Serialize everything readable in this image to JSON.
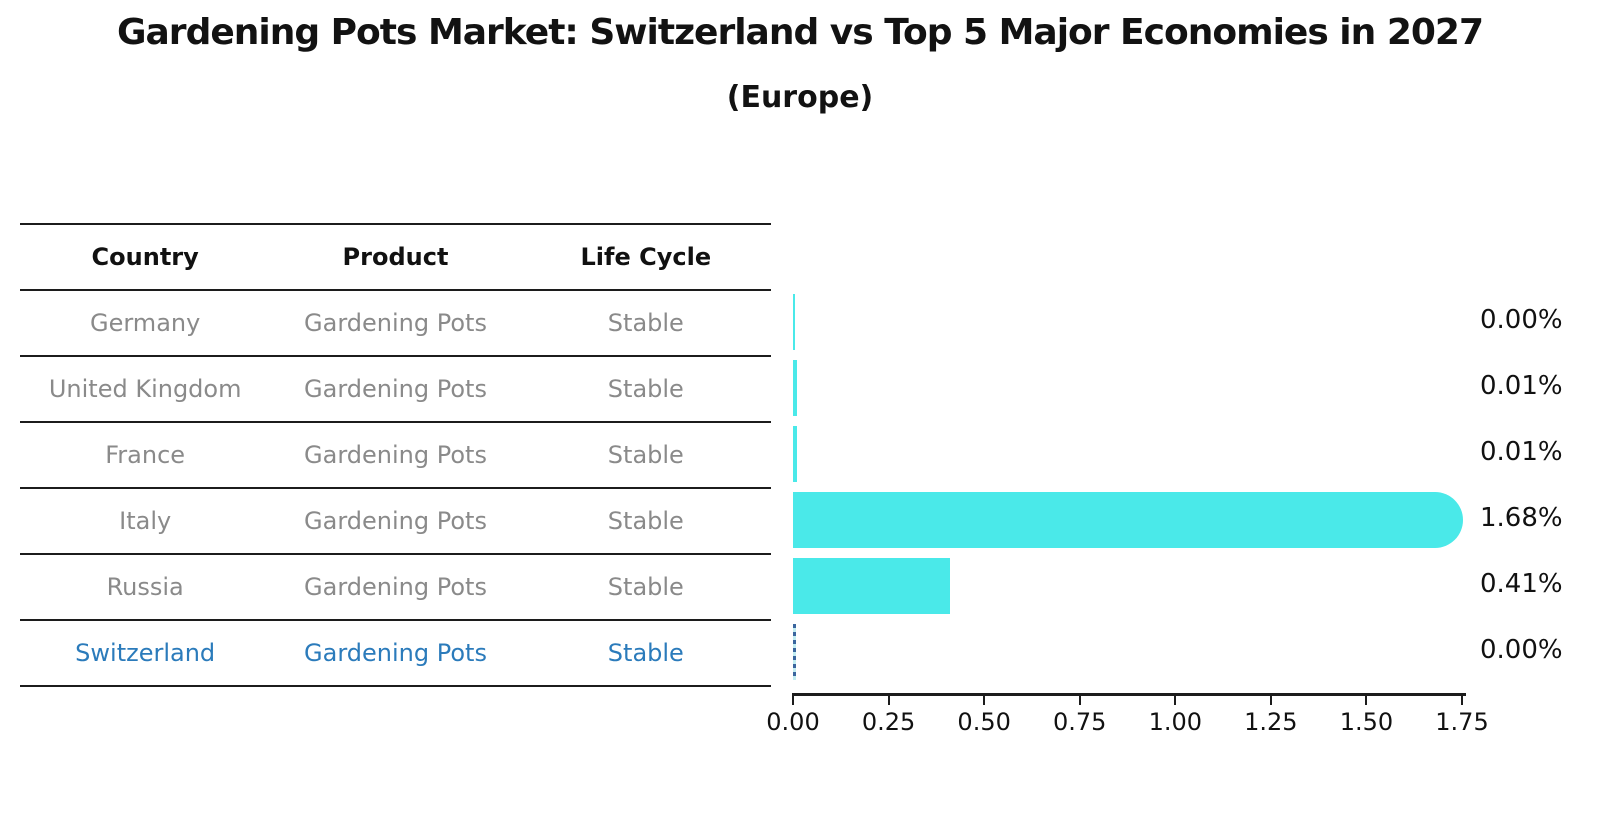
{
  "chart_data": {
    "type": "bar",
    "orientation": "horizontal",
    "title": "Gardening Pots Market: Switzerland vs Top 5 Major Economies in 2027",
    "subtitle": "(Europe)",
    "categories": [
      "Germany",
      "United Kingdom",
      "France",
      "Italy",
      "Russia",
      "Switzerland"
    ],
    "values": [
      0.0,
      0.01,
      0.01,
      1.68,
      0.41,
      0.0
    ],
    "value_labels": [
      "0.00%",
      "0.01%",
      "0.01%",
      "1.68%",
      "0.41%",
      "0.00%"
    ],
    "xlabel": "",
    "ylabel": "",
    "xlim": [
      0,
      1.75
    ],
    "x_ticks": [
      0,
      0.25,
      0.5,
      0.75,
      1.0,
      1.25,
      1.5,
      1.75
    ],
    "x_tick_labels": [
      "0.00",
      "0.25",
      "0.50",
      "0.75",
      "1.00",
      "1.25",
      "1.50",
      "1.75"
    ],
    "grid": false,
    "legend": false,
    "bar_color": "#4ae9e9",
    "highlight_country": "Switzerland",
    "highlight_color": "#2b7bbb",
    "highlight_bar_style": "dashed"
  },
  "table": {
    "columns": [
      "Country",
      "Product",
      "Life Cycle"
    ],
    "rows": [
      {
        "country": "Germany",
        "product": "Gardening Pots",
        "life_cycle": "Stable",
        "share": "0.00%",
        "highlight": false
      },
      {
        "country": "United Kingdom",
        "product": "Gardening Pots",
        "life_cycle": "Stable",
        "share": "0.01%",
        "highlight": false
      },
      {
        "country": "France",
        "product": "Gardening Pots",
        "life_cycle": "Stable",
        "share": "0.01%",
        "highlight": false
      },
      {
        "country": "Italy",
        "product": "Gardening Pots",
        "life_cycle": "Stable",
        "share": "1.68%",
        "highlight": false
      },
      {
        "country": "Russia",
        "product": "Gardening Pots",
        "life_cycle": "Stable",
        "share": "0.41%",
        "highlight": false
      },
      {
        "country": "Switzerland",
        "product": "Gardening Pots",
        "life_cycle": "Stable",
        "share": "0.00%",
        "highlight": true
      }
    ]
  },
  "colors": {
    "bar": "#4ae9e9",
    "highlight_text": "#2b7bbb",
    "table_text": "#8a8a8a",
    "line": "#1c1c1c",
    "label_text": "#111111"
  }
}
